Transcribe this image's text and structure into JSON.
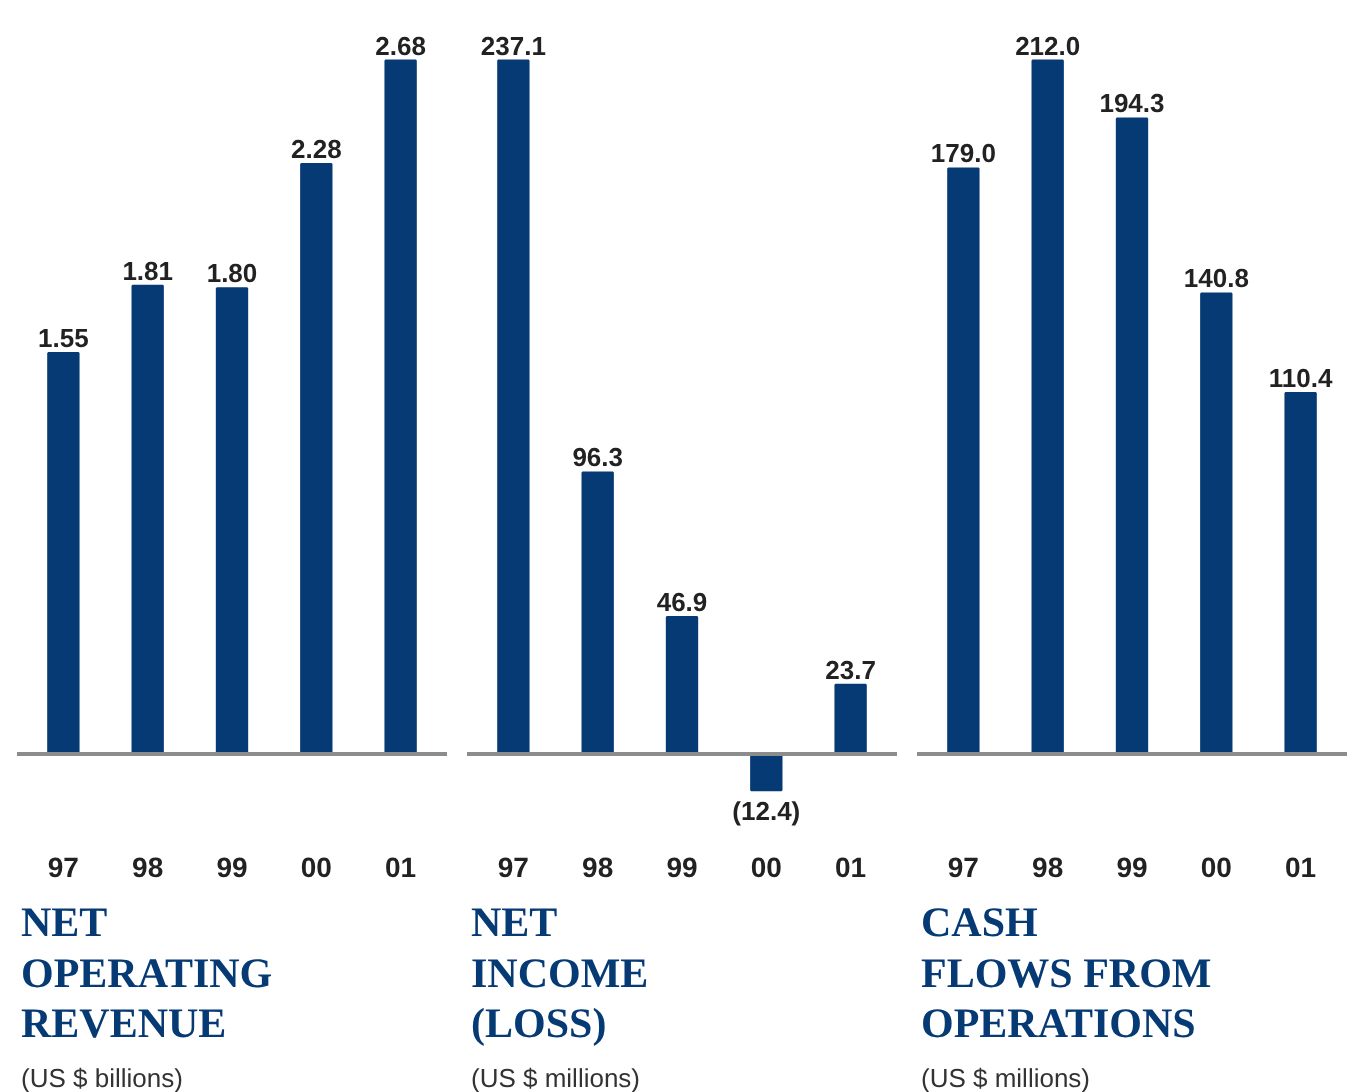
{
  "chart_data": [
    {
      "type": "bar",
      "title": "NET\nOPERATING\nREVENUE",
      "subtitle": "(US $ billions)",
      "categories": [
        "97",
        "98",
        "99",
        "00",
        "01"
      ],
      "values": [
        1.55,
        1.81,
        1.8,
        2.28,
        2.68
      ],
      "value_labels": [
        "1.55",
        "1.81",
        "1.80",
        "2.28",
        "2.68"
      ],
      "color": "#063a74"
    },
    {
      "type": "bar",
      "title": "NET\nINCOME\n(LOSS)",
      "subtitle": "(US $ millions)",
      "categories": [
        "97",
        "98",
        "99",
        "00",
        "01"
      ],
      "values": [
        237.1,
        96.3,
        46.9,
        -12.4,
        23.7
      ],
      "value_labels": [
        "237.1",
        "96.3",
        "46.9",
        "(12.4)",
        "23.7"
      ],
      "color": "#063a74"
    },
    {
      "type": "bar",
      "title": "CASH\nFLOWS FROM\nOPERATIONS",
      "subtitle": "(US $ millions)",
      "categories": [
        "97",
        "98",
        "99",
        "00",
        "01"
      ],
      "values": [
        179.0,
        212.0,
        194.3,
        140.8,
        110.4
      ],
      "value_labels": [
        "179.0",
        "212.0",
        "194.3",
        "140.8",
        "110.4"
      ],
      "color": "#063a74"
    }
  ]
}
